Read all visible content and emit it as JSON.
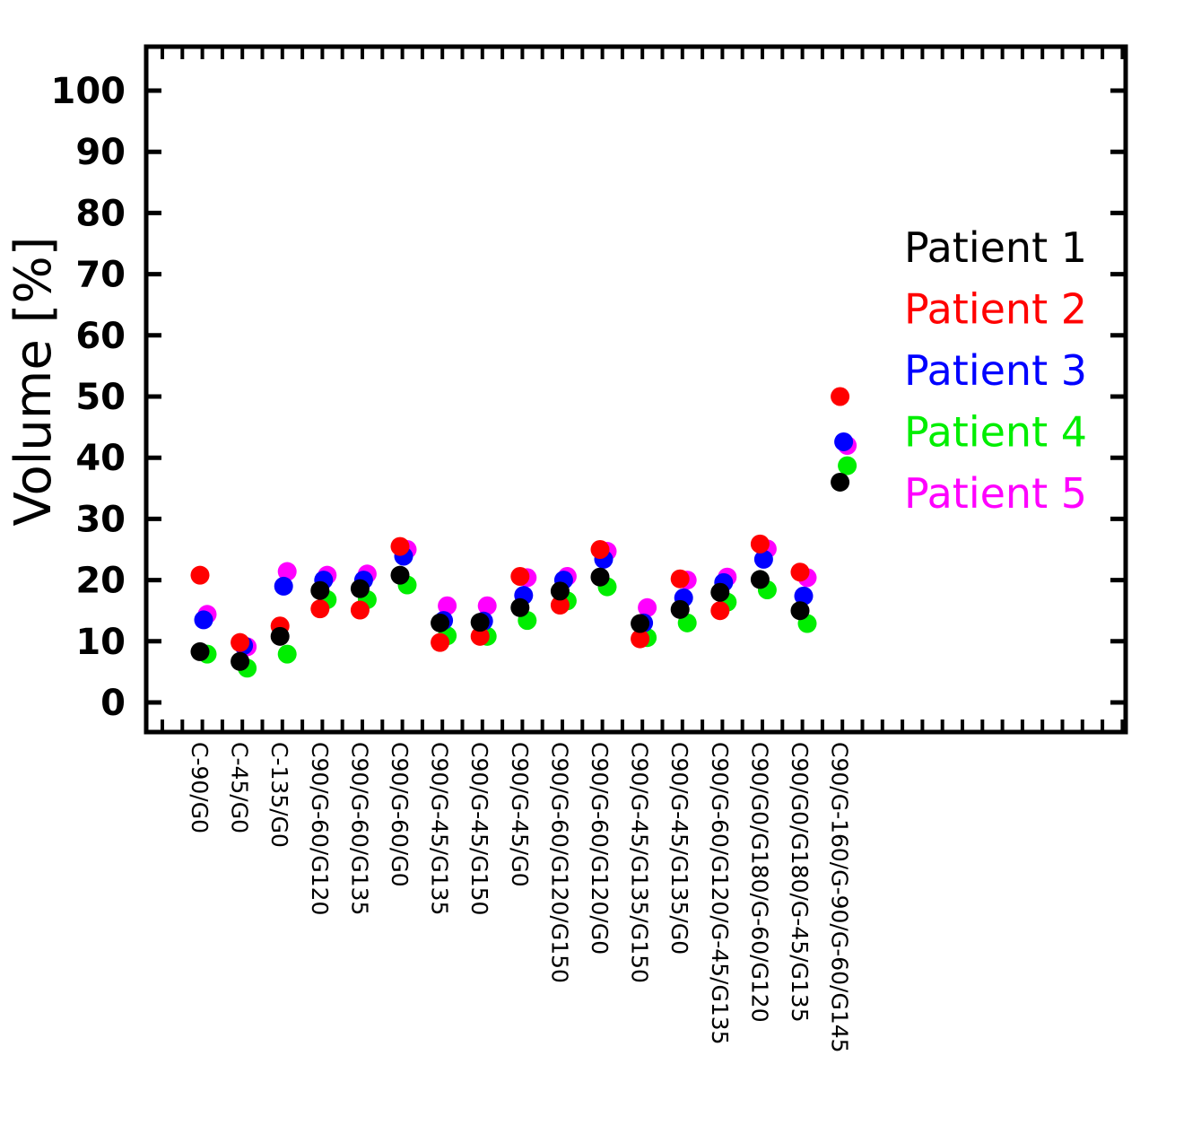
{
  "chart_data": {
    "type": "scatter",
    "ylabel": "Volume  [%]",
    "ylim": [
      -5,
      106
    ],
    "yticks": [
      "0",
      "10",
      "20",
      "30",
      "40",
      "50",
      "60",
      "70",
      "80",
      "90",
      "100"
    ],
    "grid": false,
    "legend_position": "right",
    "categories": [
      "C-90/G0",
      "C-45/G0",
      "C-135/G0",
      "C90/G-60/G120",
      "C90/G-60/G135",
      "C90/G-60/G0",
      "C90/G-45/G135",
      "C90/G-45/G150",
      "C90/G-45/G0",
      "C90/G-60/G120/G150",
      "C90/G-60/G120/G0",
      "C90/G-45/G135/G150",
      "C90/G-45/G135/G0",
      "C90/G-60/G120/G-45/G135",
      "C90/G0/G180/G-60/G120",
      "C90/G0/G180/G-45/G135",
      "C90/G-160/G-90/G-60/G145"
    ],
    "series": [
      {
        "name": "Patient  1",
        "color": "#000000",
        "values": [
          8.3,
          6.7,
          10.8,
          18.3,
          18.6,
          20.8,
          13.0,
          13.1,
          15.5,
          18.2,
          20.5,
          12.9,
          15.2,
          18.0,
          20.1,
          15.0,
          36.0
        ]
      },
      {
        "name": "Patient  2",
        "color": "#ff0000",
        "values": [
          20.8,
          9.8,
          12.5,
          15.3,
          15.1,
          25.5,
          9.8,
          10.8,
          20.6,
          15.9,
          25.0,
          10.4,
          20.2,
          15.0,
          25.9,
          21.3,
          50.0
        ]
      },
      {
        "name": "Patient  3",
        "color": "#0000ff",
        "values": [
          13.5,
          9.3,
          19.0,
          20.0,
          20.0,
          23.9,
          13.4,
          13.3,
          17.5,
          20.0,
          23.4,
          13.0,
          17.1,
          19.6,
          23.4,
          17.4,
          42.6
        ]
      },
      {
        "name": "Patient  4",
        "color": "#00ee00",
        "values": [
          7.9,
          5.6,
          7.9,
          16.8,
          16.8,
          19.2,
          10.9,
          10.8,
          13.4,
          16.6,
          18.9,
          10.6,
          13.0,
          16.4,
          18.4,
          12.9,
          38.7
        ]
      },
      {
        "name": "Patient  5",
        "color": "#ff00ff",
        "values": [
          14.4,
          9.1,
          21.4,
          20.8,
          21.0,
          25.0,
          15.8,
          15.8,
          20.4,
          20.6,
          24.7,
          15.5,
          20.0,
          20.5,
          25.1,
          20.4,
          42.0
        ]
      }
    ]
  }
}
